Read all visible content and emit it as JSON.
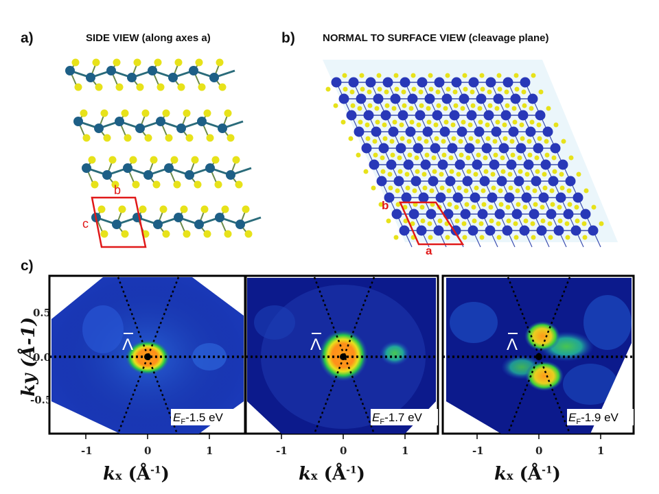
{
  "panel_a": {
    "label": "a)",
    "title": "SIDE VIEW (along axes a)",
    "cell_b": "b",
    "cell_c": "c"
  },
  "panel_b": {
    "label": "b)",
    "title": "NORMAL TO SURFACE VIEW (cleavage plane)",
    "cell_b": "b",
    "cell_a": "a"
  },
  "panel_c": {
    "label": "c)",
    "xlabel_sym": "k",
    "xlabel_sub": "x",
    "xlabel_unit_pre": " (Å",
    "xlabel_unit_sup": "-1",
    "xlabel_unit_post": ")",
    "ylabel": "ky (Å-1)",
    "lambda_symbol": "Λ",
    "x_ticks": [
      "-1",
      "0",
      "1"
    ],
    "y_ticks": [
      "0.5",
      "0.0",
      "-0.5"
    ],
    "maps": [
      {
        "e_sym": "E",
        "e_sub": "F",
        "e_rest": "-1.5 eV"
      },
      {
        "e_sym": "E",
        "e_sub": "F",
        "e_rest": "-1.7 eV"
      },
      {
        "e_sym": "E",
        "e_sub": "F",
        "e_rest": "-1.9 eV"
      }
    ]
  },
  "colors": {
    "metal_atom": "#1d5f86",
    "metal_atom_top": "#2838b8",
    "chalcogen_atom": "#e7e21a",
    "unit_cell": "#e01818",
    "map_background": "#0c1a8c",
    "map_hot": "#ff9a1a",
    "map_green": "#38d23a"
  }
}
